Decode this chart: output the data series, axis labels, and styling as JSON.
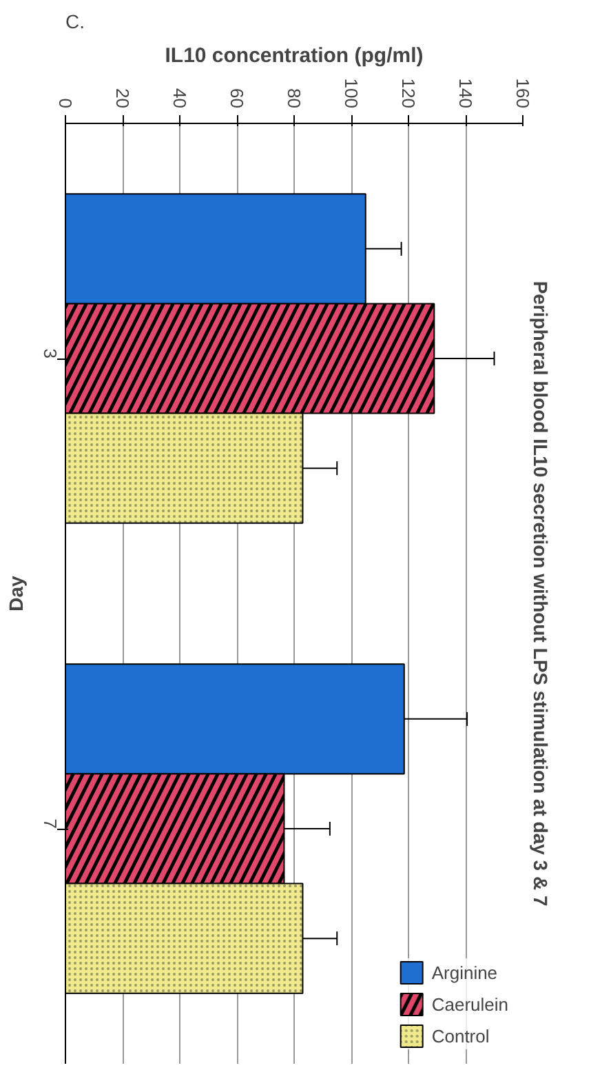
{
  "chart_data": {
    "type": "bar",
    "orientation": "horizontal",
    "title": "Peripheral blood IL10 secretion without LPS stimulation at day 3 & 7",
    "xlabel": "IL10 concentration (pg/ml)",
    "ylabel": "Day",
    "annotations": [
      "C."
    ],
    "categories": [
      "3",
      "7"
    ],
    "series": [
      {
        "name": "Arginine",
        "color": "#1f6fd0",
        "values": [
          105,
          118.5
        ],
        "errors": [
          12.5,
          22
        ]
      },
      {
        "name": "Caerulein",
        "color": "#e0476a",
        "values": [
          129,
          76.5
        ],
        "errors": [
          21,
          16
        ]
      },
      {
        "name": "Control",
        "color": "#eeea8c",
        "values": [
          83,
          83
        ],
        "errors": [
          12,
          12
        ]
      }
    ],
    "xlim": [
      0,
      160
    ],
    "xticks": [
      0,
      20,
      40,
      60,
      80,
      100,
      120,
      140,
      160
    ],
    "grid": "x",
    "legend": "bottom right"
  }
}
